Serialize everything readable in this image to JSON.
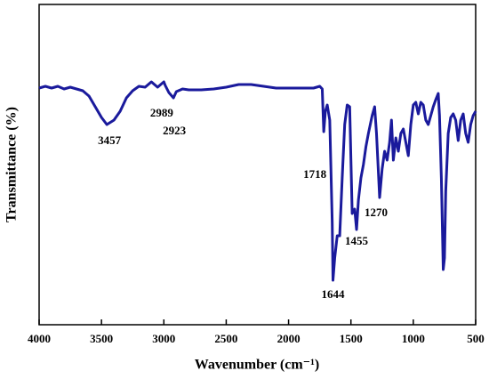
{
  "chart_data": {
    "type": "line",
    "xlabel": "Wavenumber (cm⁻¹)",
    "ylabel": "Transmittance (%)",
    "xlim": [
      4000,
      500
    ],
    "xticks": [
      4000,
      3500,
      3000,
      2500,
      2000,
      1500,
      1000,
      500
    ],
    "ylim": [
      0,
      360
    ],
    "series": [
      {
        "color": "#1a1a9c",
        "x": [
          4000,
          3950,
          3900,
          3850,
          3800,
          3750,
          3700,
          3650,
          3600,
          3550,
          3500,
          3457,
          3400,
          3350,
          3300,
          3250,
          3200,
          3150,
          3100,
          3050,
          3000,
          2989,
          2960,
          2923,
          2900,
          2850,
          2800,
          2700,
          2600,
          2500,
          2400,
          2300,
          2200,
          2100,
          2000,
          1900,
          1800,
          1750,
          1730,
          1718,
          1705,
          1690,
          1670,
          1650,
          1644,
          1630,
          1610,
          1590,
          1570,
          1550,
          1530,
          1510,
          1490,
          1470,
          1455,
          1440,
          1420,
          1400,
          1380,
          1360,
          1330,
          1310,
          1295,
          1270,
          1250,
          1230,
          1210,
          1190,
          1175,
          1160,
          1140,
          1120,
          1100,
          1080,
          1060,
          1040,
          1020,
          1000,
          980,
          960,
          940,
          920,
          900,
          880,
          860,
          840,
          820,
          800,
          790,
          775,
          760,
          750,
          740,
          720,
          700,
          680,
          660,
          640,
          620,
          600,
          580,
          560,
          540,
          520,
          500
        ],
        "values": [
          266,
          268,
          266,
          268,
          265,
          267,
          265,
          263,
          257,
          245,
          233,
          225,
          230,
          240,
          255,
          263,
          268,
          267,
          273,
          267,
          273,
          269,
          261,
          255,
          262,
          265,
          264,
          264,
          265,
          267,
          270,
          270,
          268,
          266,
          266,
          266,
          266,
          268,
          265,
          217,
          240,
          247,
          230,
          115,
          50,
          75,
          100,
          100,
          165,
          225,
          247,
          245,
          125,
          130,
          107,
          140,
          165,
          180,
          200,
          215,
          235,
          245,
          215,
          143,
          175,
          195,
          185,
          205,
          230,
          185,
          210,
          195,
          215,
          220,
          205,
          190,
          225,
          247,
          250,
          237,
          250,
          247,
          230,
          225,
          235,
          245,
          253,
          260,
          235,
          165,
          62,
          75,
          150,
          215,
          233,
          237,
          230,
          207,
          230,
          237,
          215,
          205,
          225,
          235,
          240
        ]
      }
    ],
    "annotations": [
      {
        "label": "3457",
        "x": 3457
      },
      {
        "label": "2989",
        "x": 2989
      },
      {
        "label": "2923",
        "x": 2923
      },
      {
        "label": "1718",
        "x": 1718
      },
      {
        "label": "1644",
        "x": 1644
      },
      {
        "label": "1455",
        "x": 1455
      },
      {
        "label": "1270",
        "x": 1270
      }
    ]
  }
}
